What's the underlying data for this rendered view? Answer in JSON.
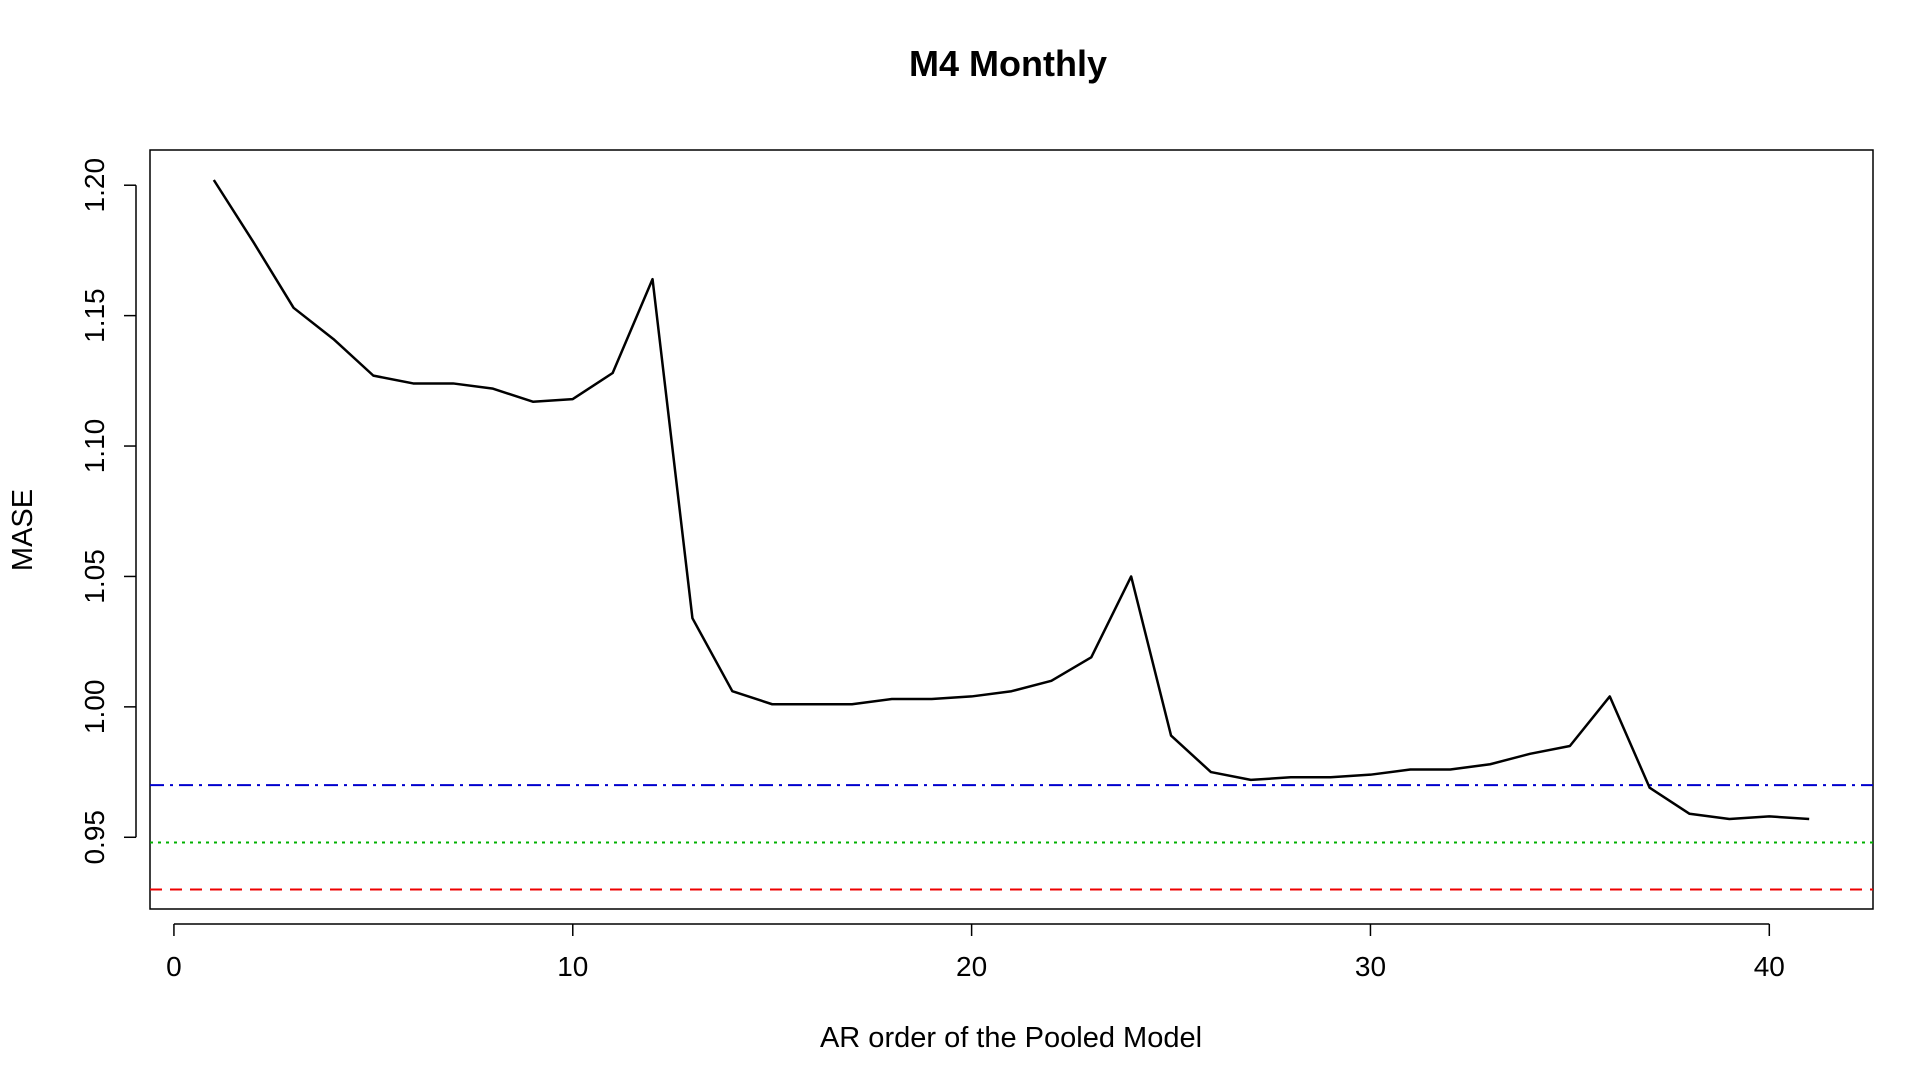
{
  "chart_data": {
    "type": "line",
    "title": "M4 Monthly",
    "xlabel": "AR order of the Pooled Model",
    "ylabel": "MASE",
    "xlim": [
      -0.6,
      42.6
    ],
    "ylim": [
      0.9225,
      1.2135
    ],
    "x_ticks": [
      0,
      10,
      20,
      30,
      40
    ],
    "x_tick_labels": [
      "0",
      "10",
      "20",
      "30",
      "40"
    ],
    "y_ticks": [
      0.95,
      1.0,
      1.05,
      1.1,
      1.15,
      1.2
    ],
    "y_tick_labels": [
      "0.95",
      "1.00",
      "1.05",
      "1.10",
      "1.15",
      "1.20"
    ],
    "grid": false,
    "series": [
      {
        "color": "#000000",
        "style": "solid",
        "x": [
          1,
          2,
          3,
          4,
          5,
          6,
          7,
          8,
          9,
          10,
          11,
          12,
          13,
          14,
          15,
          16,
          17,
          18,
          19,
          20,
          21,
          22,
          23,
          24,
          25,
          26,
          27,
          28,
          29,
          30,
          31,
          32,
          33,
          34,
          35,
          36,
          37,
          38,
          39,
          40,
          41
        ],
        "y": [
          1.202,
          1.178,
          1.153,
          1.141,
          1.127,
          1.124,
          1.124,
          1.122,
          1.117,
          1.118,
          1.128,
          1.164,
          1.034,
          1.006,
          1.001,
          1.001,
          1.001,
          1.003,
          1.003,
          1.004,
          1.006,
          1.01,
          1.019,
          1.05,
          0.989,
          0.975,
          0.972,
          0.973,
          0.973,
          0.974,
          0.976,
          0.976,
          0.978,
          0.982,
          0.985,
          1.004,
          0.969,
          0.959,
          0.957,
          0.958,
          0.957
        ]
      }
    ],
    "hlines": [
      {
        "y": 0.97,
        "color": "#0000cd",
        "style": "dashdot"
      },
      {
        "y": 0.948,
        "color": "#00b000",
        "style": "dotted"
      },
      {
        "y": 0.93,
        "color": "#ee0000",
        "style": "dashed"
      }
    ]
  }
}
